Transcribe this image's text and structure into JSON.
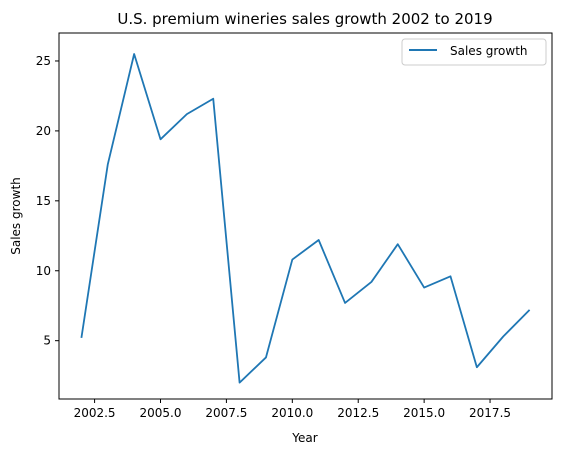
{
  "chart_data": {
    "type": "line",
    "title": "U.S. premium wineries sales growth 2002 to 2019",
    "xlabel": "Year",
    "ylabel": "Sales growth",
    "xlim": [
      2001.15,
      2019.85
    ],
    "ylim": [
      0.83,
      27.0
    ],
    "x_ticks": [
      2002.5,
      2005.0,
      2007.5,
      2010.0,
      2012.5,
      2015.0,
      2017.5
    ],
    "x_tick_labels": [
      "2002.5",
      "2005.0",
      "2007.5",
      "2010.0",
      "2012.5",
      "2015.0",
      "2017.5"
    ],
    "y_ticks": [
      5,
      10,
      15,
      20,
      25
    ],
    "y_tick_labels": [
      "5",
      "10",
      "15",
      "20",
      "25"
    ],
    "grid": false,
    "legend_position": "top-right",
    "series": [
      {
        "name": "Sales growth",
        "color": "#1f77b4",
        "x": [
          2002,
          2003,
          2004,
          2005,
          2006,
          2007,
          2008,
          2009,
          2010,
          2011,
          2012,
          2013,
          2014,
          2015,
          2016,
          2017,
          2018,
          2019
        ],
        "y": [
          5.2,
          17.6,
          25.5,
          19.4,
          21.2,
          22.3,
          2.0,
          3.8,
          10.8,
          12.2,
          7.7,
          9.2,
          11.9,
          8.8,
          9.6,
          3.1,
          5.3,
          7.2
        ]
      }
    ]
  }
}
